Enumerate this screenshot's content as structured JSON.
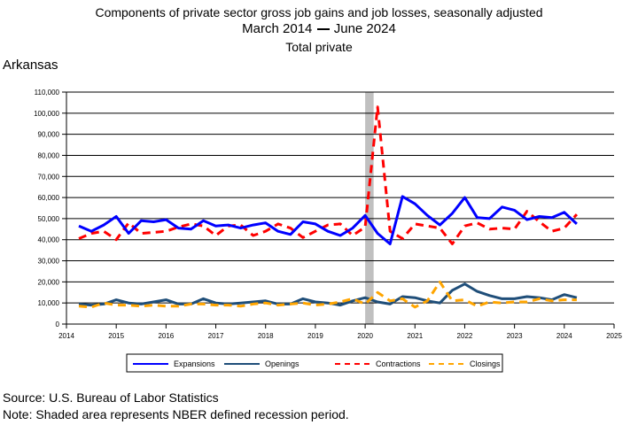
{
  "titles": {
    "line1": "Components of private sector gross job gains and job losses, seasonally adjusted",
    "line2_start": "March 2014",
    "line2_end": "June 2024",
    "line3": "Total private"
  },
  "state": "Arkansas",
  "footer": {
    "source": "Source: U.S. Bureau of Labor Statistics",
    "note": "Note: Shaded area represents NBER defined recession period."
  },
  "chart_data": {
    "type": "line",
    "xlim": [
      2014,
      2025
    ],
    "ylim": [
      0,
      110000
    ],
    "x_ticks": [
      2014,
      2015,
      2016,
      2017,
      2018,
      2019,
      2020,
      2021,
      2022,
      2023,
      2024,
      2025
    ],
    "y_ticks": [
      0,
      10000,
      20000,
      30000,
      40000,
      50000,
      60000,
      70000,
      80000,
      90000,
      100000,
      110000
    ],
    "y_tick_labels": [
      "0",
      "10,000",
      "20,000",
      "30,000",
      "40,000",
      "50,000",
      "60,000",
      "70,000",
      "80,000",
      "90,000",
      "100,000",
      "110,000"
    ],
    "grid": "horizontal",
    "legend_position": "bottom",
    "recession": [
      2020.0,
      2020.17
    ],
    "recession_color": "#c0c0c0",
    "series": [
      {
        "name": "Expansions",
        "color": "#0000ff",
        "dash": "solid",
        "x": [
          2014.25,
          2014.5,
          2014.75,
          2015.0,
          2015.25,
          2015.5,
          2015.75,
          2016.0,
          2016.25,
          2016.5,
          2016.75,
          2017.0,
          2017.25,
          2017.5,
          2017.75,
          2018.0,
          2018.25,
          2018.5,
          2018.75,
          2019.0,
          2019.25,
          2019.5,
          2019.75,
          2020.0,
          2020.25,
          2020.5,
          2020.75,
          2021.0,
          2021.25,
          2021.5,
          2021.75,
          2022.0,
          2022.25,
          2022.5,
          2022.75,
          2023.0,
          2023.25,
          2023.5,
          2023.75,
          2024.0,
          2024.25
        ],
        "y": [
          46500,
          44000,
          47000,
          51000,
          43000,
          49000,
          48500,
          49500,
          45500,
          45000,
          49000,
          46500,
          47000,
          45500,
          47000,
          48000,
          44000,
          42500,
          48500,
          47500,
          44000,
          42000,
          45500,
          51500,
          43000,
          38000,
          60500,
          57000,
          51500,
          47000,
          52500,
          60000,
          50500,
          50000,
          55500,
          54000,
          49500,
          51000,
          50500,
          53000,
          47500
        ]
      },
      {
        "name": "Openings",
        "color": "#1f4e79",
        "dash": "solid",
        "x": [
          2014.25,
          2014.5,
          2014.75,
          2015.0,
          2015.25,
          2015.5,
          2015.75,
          2016.0,
          2016.25,
          2016.5,
          2016.75,
          2017.0,
          2017.25,
          2017.5,
          2017.75,
          2018.0,
          2018.25,
          2018.5,
          2018.75,
          2019.0,
          2019.25,
          2019.5,
          2019.75,
          2020.0,
          2020.25,
          2020.5,
          2020.75,
          2021.0,
          2021.25,
          2021.5,
          2021.75,
          2022.0,
          2022.25,
          2022.5,
          2022.75,
          2023.0,
          2023.25,
          2023.5,
          2023.75,
          2024.0,
          2024.25
        ],
        "y": [
          9500,
          9000,
          9500,
          11500,
          10000,
          9500,
          10500,
          11500,
          9500,
          9500,
          12000,
          10000,
          9500,
          10000,
          10500,
          11000,
          9500,
          9500,
          12000,
          10500,
          10000,
          9000,
          11000,
          12500,
          10500,
          9500,
          13000,
          12500,
          11000,
          10000,
          16000,
          19000,
          15500,
          13500,
          12000,
          12000,
          13000,
          12500,
          11500,
          14000,
          12500
        ]
      },
      {
        "name": "Contractions",
        "color": "#ff0000",
        "dash": "dashed",
        "x": [
          2014.25,
          2014.5,
          2014.75,
          2015.0,
          2015.25,
          2015.5,
          2015.75,
          2016.0,
          2016.25,
          2016.5,
          2016.75,
          2017.0,
          2017.25,
          2017.5,
          2017.75,
          2018.0,
          2018.25,
          2018.5,
          2018.75,
          2019.0,
          2019.25,
          2019.5,
          2019.75,
          2020.0,
          2020.25,
          2020.5,
          2020.75,
          2021.0,
          2021.25,
          2021.5,
          2021.75,
          2022.0,
          2022.25,
          2022.5,
          2022.75,
          2023.0,
          2023.25,
          2023.5,
          2023.75,
          2024.0,
          2024.25
        ],
        "y": [
          40500,
          43000,
          44000,
          40000,
          48000,
          43000,
          43500,
          44000,
          46000,
          47500,
          46500,
          42000,
          46500,
          47000,
          42000,
          44000,
          47500,
          45500,
          41000,
          44000,
          47000,
          47500,
          42000,
          46000,
          103000,
          44000,
          40500,
          47500,
          46500,
          45500,
          38000,
          46500,
          48000,
          45000,
          45500,
          45000,
          53500,
          48500,
          44000,
          45500,
          52000
        ]
      },
      {
        "name": "Closings",
        "color": "#ffa500",
        "dash": "dashed",
        "x": [
          2014.25,
          2014.5,
          2014.75,
          2015.0,
          2015.25,
          2015.5,
          2015.75,
          2016.0,
          2016.25,
          2016.5,
          2016.75,
          2017.0,
          2017.25,
          2017.5,
          2017.75,
          2018.0,
          2018.25,
          2018.5,
          2018.75,
          2019.0,
          2019.25,
          2019.5,
          2019.75,
          2020.0,
          2020.25,
          2020.5,
          2020.75,
          2021.0,
          2021.25,
          2021.5,
          2021.75,
          2022.0,
          2022.25,
          2022.5,
          2022.75,
          2023.0,
          2023.25,
          2023.5,
          2023.75,
          2024.0,
          2024.25
        ],
        "y": [
          8500,
          8000,
          10000,
          9000,
          9000,
          8500,
          9000,
          8500,
          8500,
          9500,
          9500,
          9000,
          9000,
          8500,
          9500,
          10000,
          9000,
          9500,
          10000,
          9000,
          9500,
          10500,
          12000,
          9500,
          15000,
          11000,
          12000,
          8000,
          11000,
          20000,
          11000,
          11500,
          8500,
          10500,
          10000,
          10500,
          10500,
          12000,
          11000,
          11500,
          11500
        ]
      }
    ]
  }
}
